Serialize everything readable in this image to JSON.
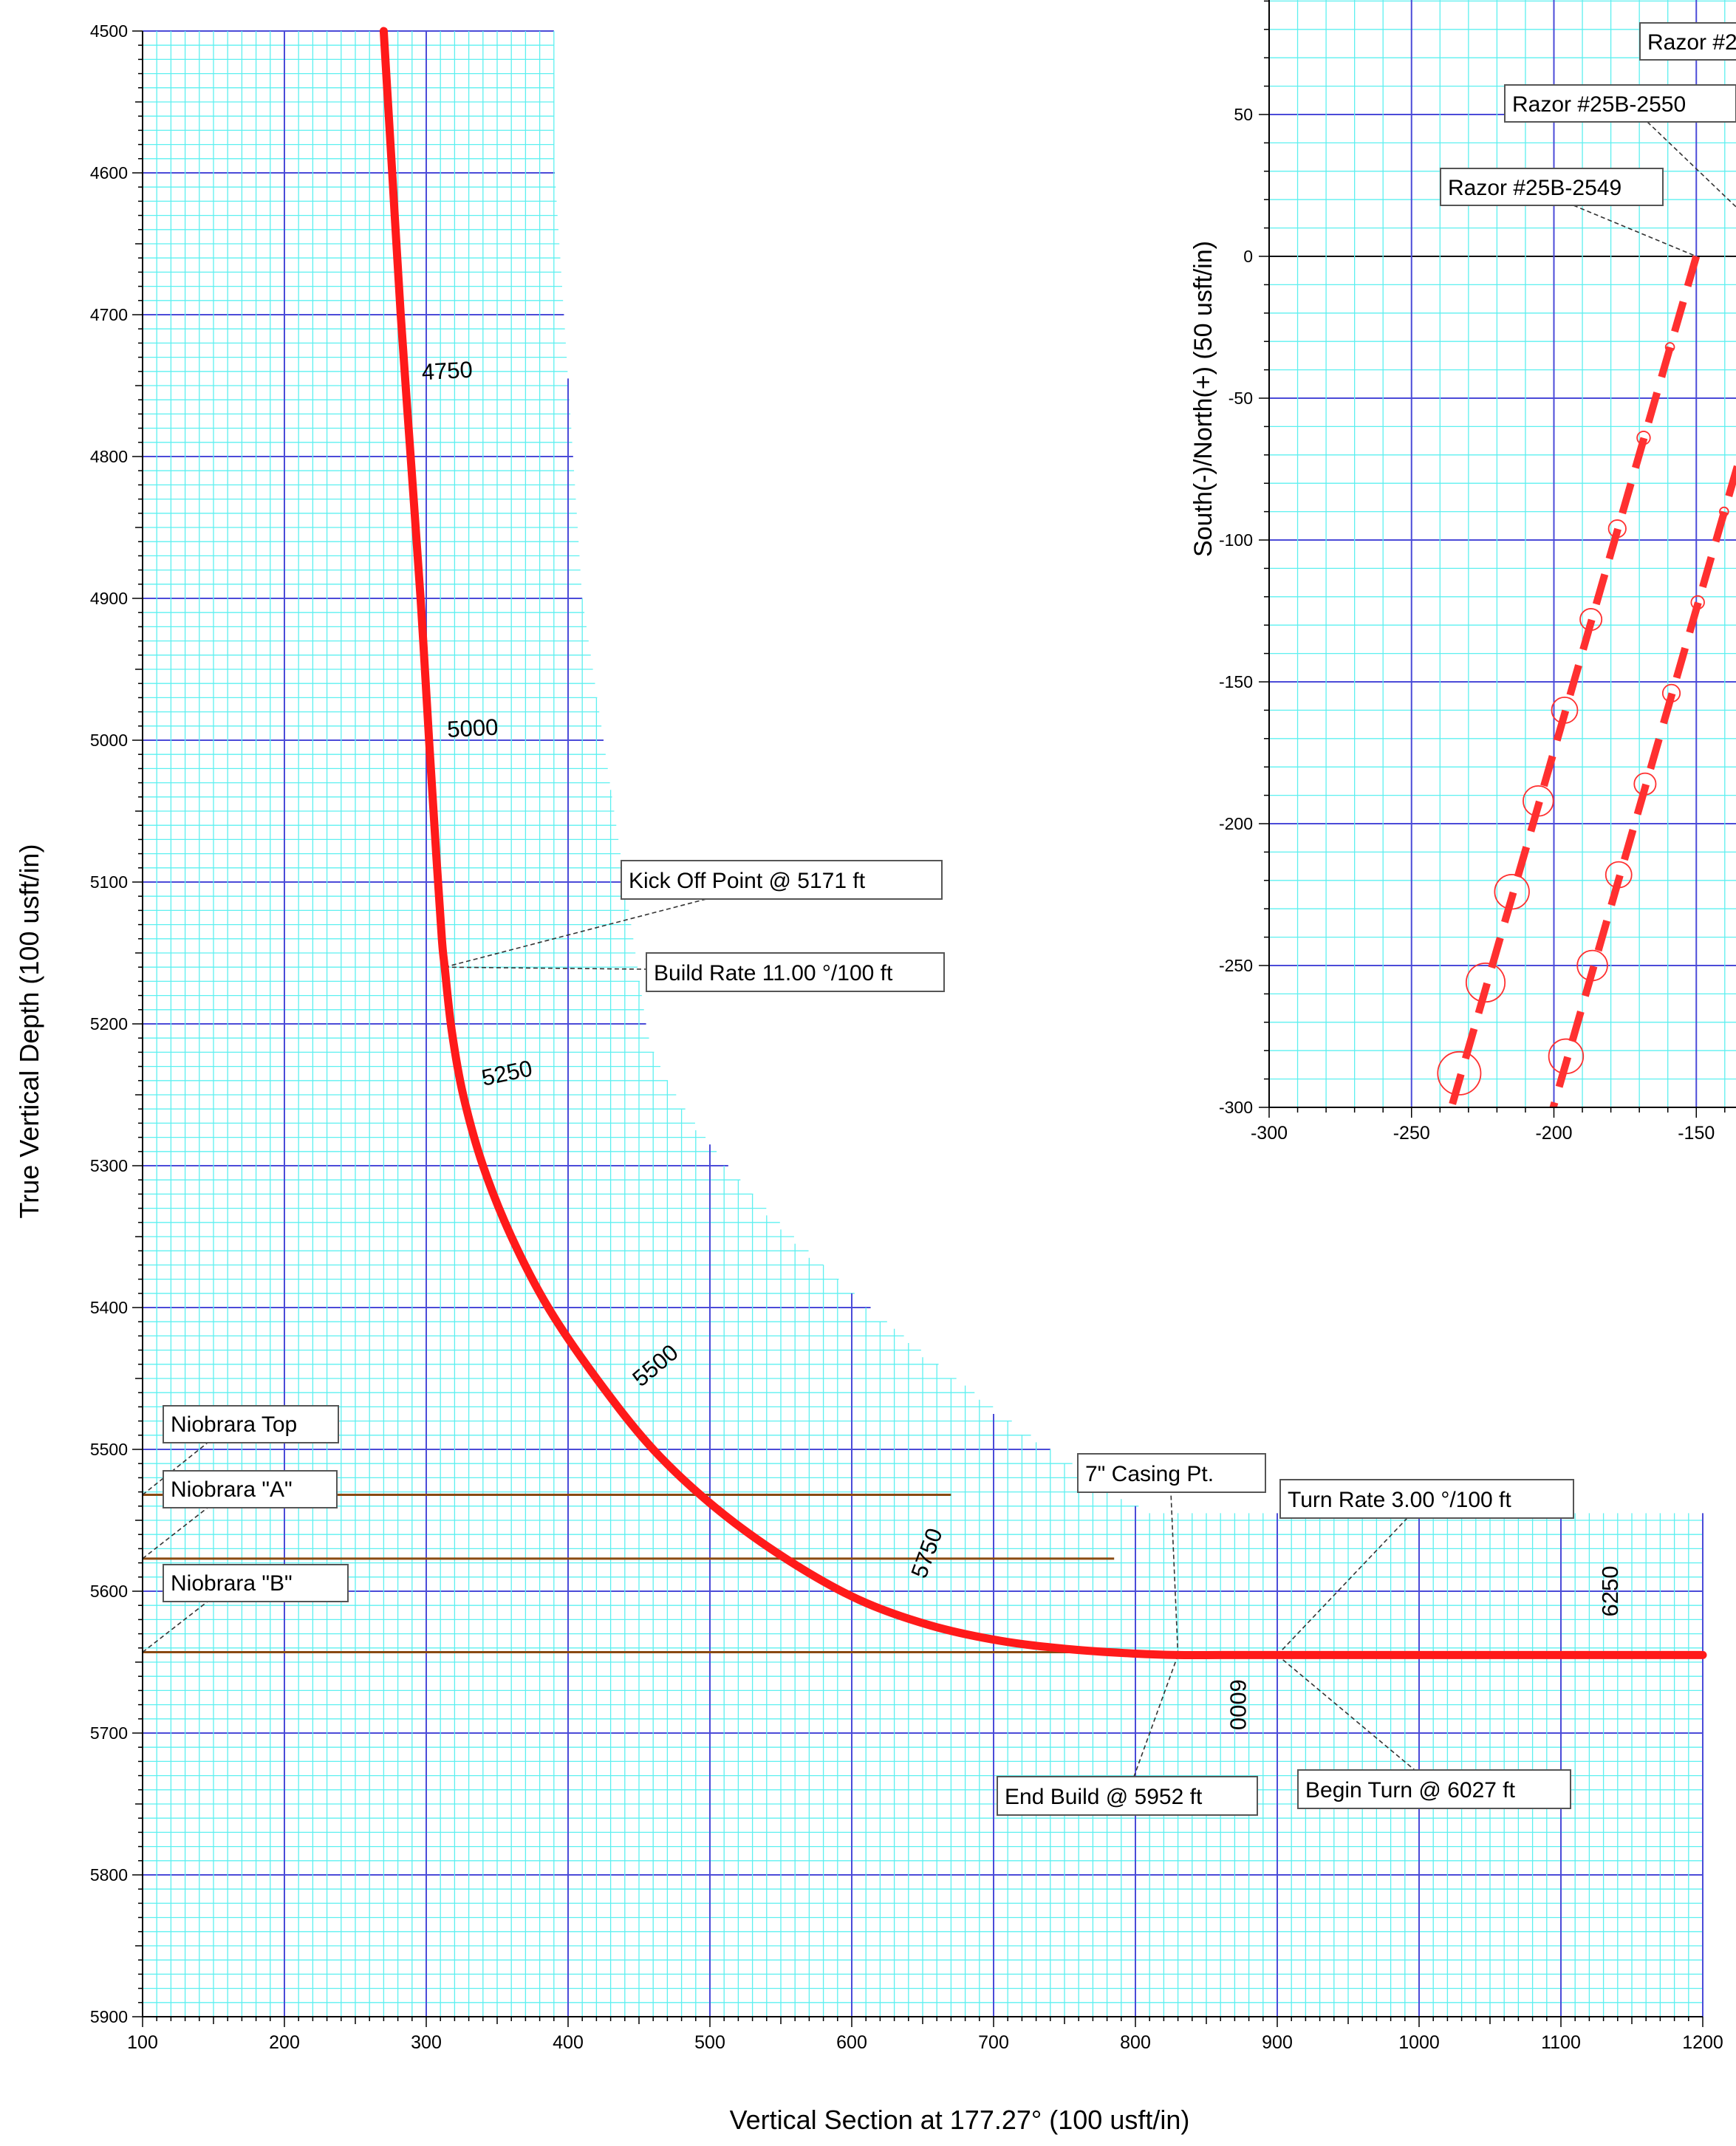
{
  "colors": {
    "minor_grid": "#5ef0f0",
    "major_grid": "#4b4bd8",
    "well_path": "#ff1a1a",
    "formation": "#8a4a12",
    "uncertainty": "#ff3030",
    "axis": "#000000"
  },
  "chart_data": [
    {
      "type": "line",
      "title": "",
      "xlabel": "Vertical Section at 177.27° (100 usft/in)",
      "ylabel": "True Vertical Depth (100 usft/in)",
      "xlim": [
        100,
        1200
      ],
      "ylim": [
        4500,
        5900
      ],
      "y_inverted": true,
      "grid": true,
      "x_ticks": [
        "100",
        "200",
        "300",
        "400",
        "500",
        "600",
        "700",
        "800",
        "900",
        "1000",
        "1100",
        "1200"
      ],
      "y_ticks": [
        "4500",
        "4600",
        "4700",
        "4800",
        "4900",
        "5000",
        "5100",
        "5200",
        "5300",
        "5400",
        "5500",
        "5600",
        "5700",
        "5800",
        "5900"
      ],
      "series": [
        {
          "x": [
            270,
            276,
            282,
            289,
            296,
            302,
            307,
            311,
            313,
            318,
            326,
            340,
            360,
            386,
            420,
            460,
            505,
            555,
            605,
            655,
            705,
            755,
            800,
            830,
            860,
            900,
            950,
            1000,
            1100,
            1200
          ],
          "y": [
            4500,
            4600,
            4700,
            4800,
            4900,
            5000,
            5080,
            5140,
            5160,
            5205,
            5250,
            5300,
            5350,
            5400,
            5450,
            5500,
            5542,
            5578,
            5606,
            5624,
            5635,
            5641,
            5644,
            5645,
            5645,
            5645,
            5645,
            5645,
            5645,
            5645
          ]
        }
      ],
      "md_labels": [
        {
          "text": "4750",
          "x": 315,
          "y": 4745
        },
        {
          "text": "5000",
          "x": 333,
          "y": 4997
        },
        {
          "text": "5250",
          "x": 358,
          "y": 5240
        },
        {
          "text": "5500",
          "x": 465,
          "y": 5445
        },
        {
          "text": "5750",
          "x": 658,
          "y": 5575
        },
        {
          "text": "6000",
          "x": 867,
          "y": 5680
        },
        {
          "text": "6250",
          "x": 1140,
          "y": 5600
        }
      ],
      "formations": [
        {
          "name": "Niobrara Top",
          "tvd": 5532,
          "x_end": 670
        },
        {
          "name": "Niobrara \"A\"",
          "tvd": 5577,
          "x_end": 785
        },
        {
          "name": "Niobrara \"B\"",
          "tvd": 5643,
          "x_end": 830
        }
      ],
      "annotations": [
        "Kick Off Point @ 5171 ft",
        "Build Rate 11.00 °/100 ft",
        "7\" Casing Pt.",
        "Turn Rate 3.00 °/100 ft",
        "End Build @ 5952 ft",
        "Begin Turn @ 6027 ft"
      ]
    },
    {
      "type": "line",
      "title": "",
      "xlabel": "",
      "ylabel": "South(-)/North(+) (50 usft/in)",
      "xlim": [
        -300,
        -130
      ],
      "ylim": [
        -300,
        90
      ],
      "grid": true,
      "x_ticks": [
        "-300",
        "-250",
        "-200",
        "-150"
      ],
      "y_ticks": [
        "50",
        "0",
        "-50",
        "-100",
        "-150",
        "-200",
        "-250",
        "-300"
      ],
      "series": [
        {
          "name": "Razor #25B-2549",
          "x": [
            -150,
            -158,
            -167,
            -176,
            -185,
            -194,
            -203,
            -212,
            -221,
            -230,
            -239,
            -248,
            -257,
            -262
          ],
          "y": [
            0,
            -26,
            -60,
            -92,
            -124,
            -156,
            -188,
            -220,
            -252,
            -284,
            -316,
            -348,
            -380,
            -286
          ]
        },
        {
          "name": "Razor #25B-2550",
          "x": [
            -131,
            -138,
            -146,
            -154,
            -162,
            -170,
            -178,
            -186,
            -194,
            -202,
            -210
          ],
          "y": [
            -60,
            -96,
            -128,
            -160,
            -194,
            -228,
            -262,
            -296,
            -330,
            -364,
            -300
          ]
        }
      ],
      "labels": [
        "Razor #2",
        "Razor #25B-2550",
        "Razor #25B-2549"
      ]
    }
  ]
}
